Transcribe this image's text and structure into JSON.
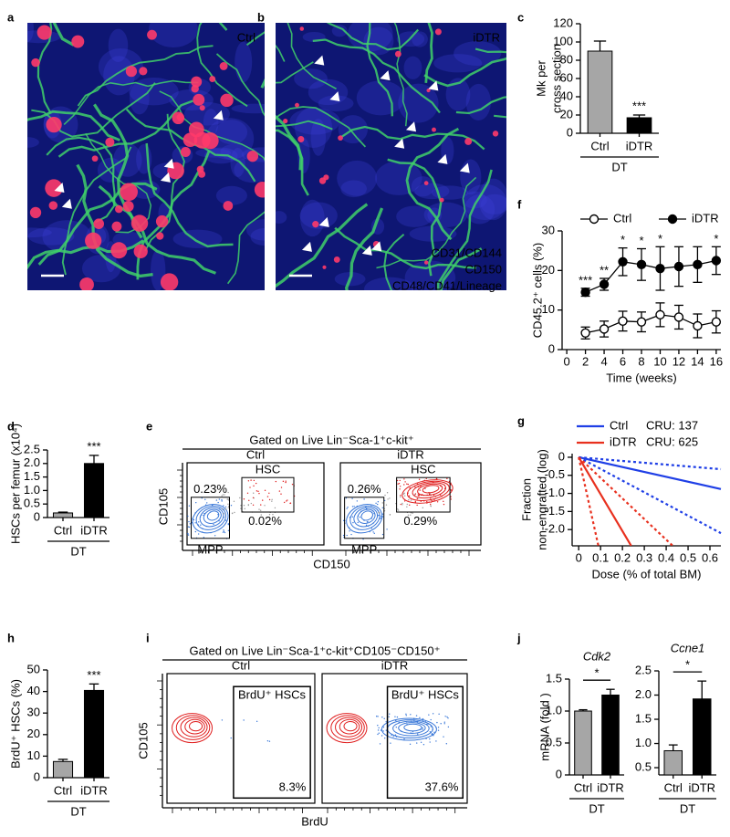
{
  "panel_letters": [
    "a",
    "b",
    "c",
    "d",
    "e",
    "f",
    "g",
    "h",
    "i",
    "j"
  ],
  "images": [
    {
      "label": "Ctrl"
    },
    {
      "label": "iDTR",
      "channels": [
        {
          "text": "CD31/CD144",
          "color": "#33dd33"
        },
        {
          "text": "CD150",
          "color": "#ff2020"
        },
        {
          "text": "CD48/CD41/Lineage",
          "color": "#6060ff"
        }
      ]
    }
  ],
  "flow": [
    {
      "gate": "Gated on Live Lin⁻Sca-1⁺c-kit⁺",
      "xlabel": "CD150",
      "ylabel": "CD105",
      "plots": [
        {
          "label": "Ctrl",
          "gates": [
            "HSC",
            "MPP"
          ],
          "percents": [
            "0.23%",
            "0.02%"
          ]
        },
        {
          "label": "iDTR",
          "gates": [
            "HSC",
            "MPP"
          ],
          "percents": [
            "0.26%",
            "0.29%"
          ]
        }
      ]
    },
    {
      "gate": "Gated on Live Lin⁻Sca-1⁺c-kit⁺CD105⁻CD150⁺",
      "xlabel": "BrdU",
      "ylabel": "CD105",
      "plots": [
        {
          "label": "Ctrl",
          "gates": [
            "BrdU⁺ HSCs"
          ],
          "percents": [
            "8.3%"
          ]
        },
        {
          "label": "iDTR",
          "gates": [
            "BrdU⁺ HSCs"
          ],
          "percents": [
            "37.6%"
          ]
        }
      ]
    }
  ],
  "chart_data": [
    {
      "type": "bar",
      "ylabel": [
        "Mk per",
        "cross section"
      ],
      "categories": [
        "Ctrl",
        "iDTR"
      ],
      "values": [
        90,
        17
      ],
      "errors": [
        11,
        3
      ],
      "colors": [
        "#a6a6a6",
        "#000000"
      ],
      "ylim": [
        0,
        120
      ],
      "yticks": [
        0,
        20,
        40,
        60,
        80,
        100,
        120
      ],
      "group": "DT",
      "significance": "***"
    },
    {
      "type": "line",
      "ylabel": [
        "CD45.2⁺ cells (%)"
      ],
      "xlabel": "Time (weeks)",
      "x": [
        2,
        4,
        6,
        8,
        10,
        12,
        14,
        16
      ],
      "series": [
        {
          "name": "Ctrl",
          "color": "#000000",
          "fill": "#ffffff",
          "values": [
            4.2,
            5.2,
            7.2,
            7,
            8.8,
            8.2,
            6,
            7
          ],
          "errors": [
            1.5,
            2,
            2.5,
            2.5,
            3,
            3,
            3,
            2.8
          ]
        },
        {
          "name": "iDTR",
          "color": "#000000",
          "fill": "#000000",
          "values": [
            14.5,
            16.5,
            22.2,
            21.5,
            20.5,
            21,
            21.5,
            22.5
          ],
          "errors": [
            1,
            1.5,
            3.5,
            4,
            5.5,
            5,
            4.5,
            3.5
          ]
        }
      ],
      "xlim": [
        -0.5,
        16.5
      ],
      "xticks": [
        0,
        2,
        4,
        6,
        8,
        10,
        12,
        14,
        16
      ],
      "ylim": [
        0,
        30
      ],
      "yticks": [
        0,
        10,
        20,
        30
      ],
      "annotations": [
        {
          "x": 2,
          "text": "***"
        },
        {
          "x": 4,
          "text": "**"
        },
        {
          "x": 6,
          "text": "*"
        },
        {
          "x": 8,
          "text": "*"
        },
        {
          "x": 10,
          "text": "*"
        },
        {
          "x": 16,
          "text": "*"
        }
      ],
      "legend": "top"
    },
    {
      "type": "line",
      "ylabel": [
        "Fraction",
        "non-engrafted (log)"
      ],
      "xlabel": "Dose (% of total BM)",
      "series": [
        {
          "name": "Ctrl",
          "color": "#1f3fe6",
          "x": [
            0,
            0.65
          ],
          "values": [
            0,
            -0.88
          ]
        },
        {
          "color": "#1f3fe6",
          "dash": true,
          "x": [
            0,
            0.65
          ],
          "values": [
            0,
            -0.33
          ]
        },
        {
          "color": "#1f3fe6",
          "dash": true,
          "x": [
            0,
            0.65
          ],
          "values": [
            0,
            -2.1
          ]
        },
        {
          "name": "iDTR",
          "color": "#e8301e",
          "x": [
            0,
            0.24
          ],
          "values": [
            0,
            -2.45
          ]
        },
        {
          "color": "#e8301e",
          "dash": true,
          "x": [
            0,
            0.09
          ],
          "values": [
            0,
            -2.45
          ]
        },
        {
          "color": "#e8301e",
          "dash": true,
          "x": [
            0,
            0.43
          ],
          "values": [
            0,
            -2.45
          ]
        }
      ],
      "xlim": [
        -0.03,
        0.65
      ],
      "xticks": [
        0,
        0.1,
        0.2,
        0.3,
        0.4,
        0.5,
        0.6
      ],
      "ylim": [
        -2.45,
        0.1
      ],
      "yticks": [
        0,
        -0.5,
        {
          "value": -1,
          "label": "-1.0"
        },
        -1.5,
        {
          "value": -2,
          "label": "-2.0"
        }
      ],
      "annotations": [
        {
          "text": "CRU: 137",
          "color": "#1f3fe6"
        },
        {
          "text": "CRU: 625",
          "color": "#e8301e"
        }
      ],
      "legend": "top-left"
    },
    {
      "type": "bar",
      "ylabel": [
        "HSCs per femur (x10⁴)"
      ],
      "categories": [
        "Ctrl",
        "iDTR"
      ],
      "values": [
        0.17,
        2.0
      ],
      "errors": [
        0.03,
        0.3
      ],
      "colors": [
        "#a6a6a6",
        "#000000"
      ],
      "ylim": [
        0,
        2.5
      ],
      "yticks": [
        0,
        0.5,
        {
          "value": 1,
          "label": "1.0"
        },
        1.5,
        {
          "value": 2,
          "label": "2.0"
        },
        2.5
      ],
      "group": "DT",
      "significance": "***"
    },
    {
      "type": "bar",
      "ylabel": [
        "BrdU⁺ HSCs (%)"
      ],
      "categories": [
        "Ctrl",
        "iDTR"
      ],
      "values": [
        7.5,
        40.5
      ],
      "errors": [
        1,
        3
      ],
      "colors": [
        "#a6a6a6",
        "#000000"
      ],
      "ylim": [
        0,
        50
      ],
      "yticks": [
        0,
        10,
        20,
        30,
        40,
        50
      ],
      "group": "DT",
      "significance": "***"
    },
    {
      "type": "bar",
      "title": "Cdk2",
      "ylabel": [
        "mRNA (fold )"
      ],
      "categories": [
        "Ctrl",
        "iDTR"
      ],
      "values": [
        1.0,
        1.25
      ],
      "errors": [
        0.02,
        0.09
      ],
      "colors": [
        "#a6a6a6",
        "#000000"
      ],
      "ylim": [
        0,
        1.5
      ],
      "yticks": [
        0,
        0.5,
        {
          "value": 1,
          "label": "1.0"
        },
        1.5
      ],
      "group": "DT",
      "significance": "*",
      "bracket": true
    },
    {
      "type": "bar",
      "title": "Ccne1",
      "categories": [
        "Ctrl",
        "iDTR"
      ],
      "values": [
        0.85,
        1.92
      ],
      "errors": [
        0.12,
        0.37
      ],
      "colors": [
        "#a6a6a6",
        "#000000"
      ],
      "ylim": [
        0.35,
        2.5
      ],
      "yticks": [
        0.5,
        {
          "value": 1,
          "label": "1.0"
        },
        1.5,
        {
          "value": 2,
          "label": "2.0"
        },
        2.5
      ],
      "group": "DT",
      "significance": "*",
      "bracket": true
    }
  ]
}
